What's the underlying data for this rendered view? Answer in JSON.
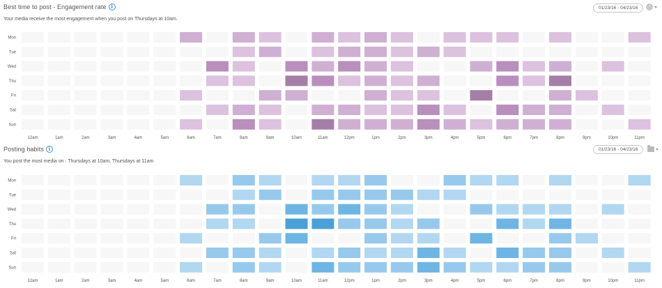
{
  "engagement": {
    "title": "Best time to post - Engagement rate",
    "subtitle": "Your media receive the most engagement when you post on Thursdays at 10am.",
    "date_range": "01/23/16 - 04/23/16",
    "info_icon": "info-icon",
    "control_icon": "user-icon",
    "color_scale": [
      "#f7f7f7",
      "#dcc2de",
      "#cfb0d3",
      "#b98fbd",
      "#a57ea7"
    ]
  },
  "posting": {
    "title": "Posting habits",
    "subtitle": "You post the most media on : Thursdays at 10am, Thursdays at 11am",
    "date_range": "01/23/16 - 04/23/16",
    "info_icon": "info-icon",
    "control_icon": "folder-icon",
    "color_scale": [
      "#f7f7f7",
      "#b2d7f1",
      "#97c9ec",
      "#6fb5e3",
      "#4aa0d7"
    ]
  },
  "chart_data": [
    {
      "type": "heatmap",
      "title": "Best time to post - Engagement rate",
      "y": [
        "Mon",
        "Tue",
        "Wed",
        "Thu",
        "Fri",
        "Sat",
        "Sun"
      ],
      "x": [
        "12am",
        "1am",
        "2am",
        "3am",
        "4am",
        "5am",
        "6am",
        "7am",
        "8am",
        "9am",
        "10am",
        "11am",
        "12pm",
        "1pm",
        "2pm",
        "3pm",
        "4pm",
        "5pm",
        "6pm",
        "7pm",
        "8pm",
        "9pm",
        "10pm",
        "11pm"
      ],
      "values": [
        [
          0,
          0,
          0,
          0,
          0,
          0,
          2,
          0,
          2,
          1,
          0,
          2,
          1,
          2,
          1,
          0,
          1,
          1,
          1,
          0,
          1,
          0,
          0,
          1
        ],
        [
          0,
          0,
          0,
          0,
          0,
          0,
          0,
          0,
          1,
          2,
          0,
          1,
          2,
          2,
          1,
          2,
          1,
          0,
          0,
          0,
          0,
          0,
          0,
          0
        ],
        [
          0,
          0,
          0,
          0,
          0,
          0,
          0,
          3,
          1,
          0,
          3,
          2,
          3,
          2,
          1,
          0,
          0,
          2,
          3,
          1,
          2,
          0,
          1,
          0
        ],
        [
          0,
          0,
          0,
          0,
          0,
          0,
          0,
          1,
          1,
          0,
          4,
          3,
          1,
          2,
          1,
          2,
          0,
          0,
          3,
          1,
          4,
          0,
          0,
          0
        ],
        [
          0,
          0,
          0,
          0,
          0,
          0,
          1,
          0,
          0,
          2,
          2,
          0,
          0,
          2,
          1,
          1,
          0,
          4,
          0,
          0,
          2,
          1,
          0,
          0
        ],
        [
          0,
          0,
          0,
          0,
          0,
          0,
          0,
          1,
          2,
          1,
          0,
          2,
          2,
          1,
          1,
          3,
          1,
          0,
          3,
          2,
          2,
          0,
          1,
          0
        ],
        [
          0,
          0,
          0,
          0,
          0,
          0,
          1,
          0,
          3,
          1,
          0,
          4,
          2,
          2,
          2,
          3,
          2,
          1,
          2,
          2,
          2,
          0,
          0,
          1
        ]
      ]
    },
    {
      "type": "heatmap",
      "title": "Posting habits",
      "y": [
        "Mon",
        "Tue",
        "Wed",
        "Thu",
        "Fri",
        "Sat",
        "Sun"
      ],
      "x": [
        "12am",
        "1am",
        "2am",
        "3am",
        "4am",
        "5am",
        "6am",
        "7am",
        "8am",
        "9am",
        "10am",
        "11am",
        "12pm",
        "1pm",
        "2pm",
        "3pm",
        "4pm",
        "5pm",
        "6pm",
        "7pm",
        "8pm",
        "9pm",
        "10pm",
        "11pm"
      ],
      "values": [
        [
          0,
          0,
          0,
          0,
          0,
          0,
          1,
          0,
          2,
          1,
          0,
          1,
          1,
          2,
          0,
          0,
          2,
          1,
          1,
          0,
          1,
          0,
          0,
          1
        ],
        [
          0,
          0,
          0,
          0,
          0,
          0,
          0,
          0,
          1,
          2,
          0,
          2,
          2,
          2,
          2,
          1,
          1,
          0,
          0,
          0,
          0,
          0,
          0,
          0
        ],
        [
          0,
          0,
          0,
          0,
          0,
          0,
          0,
          2,
          2,
          0,
          3,
          2,
          3,
          2,
          1,
          0,
          0,
          2,
          1,
          1,
          1,
          0,
          1,
          0
        ],
        [
          0,
          0,
          0,
          0,
          0,
          0,
          0,
          1,
          1,
          0,
          4,
          4,
          2,
          2,
          1,
          2,
          0,
          0,
          3,
          1,
          3,
          0,
          0,
          0
        ],
        [
          0,
          0,
          0,
          0,
          0,
          0,
          1,
          0,
          0,
          2,
          3,
          0,
          0,
          2,
          1,
          1,
          0,
          3,
          0,
          0,
          2,
          1,
          0,
          0
        ],
        [
          0,
          0,
          0,
          0,
          0,
          0,
          0,
          2,
          2,
          1,
          0,
          1,
          2,
          1,
          1,
          3,
          1,
          0,
          3,
          2,
          2,
          0,
          1,
          0
        ],
        [
          0,
          0,
          0,
          0,
          0,
          0,
          1,
          0,
          2,
          1,
          0,
          3,
          2,
          2,
          2,
          3,
          2,
          1,
          1,
          2,
          2,
          0,
          0,
          1
        ]
      ]
    }
  ]
}
